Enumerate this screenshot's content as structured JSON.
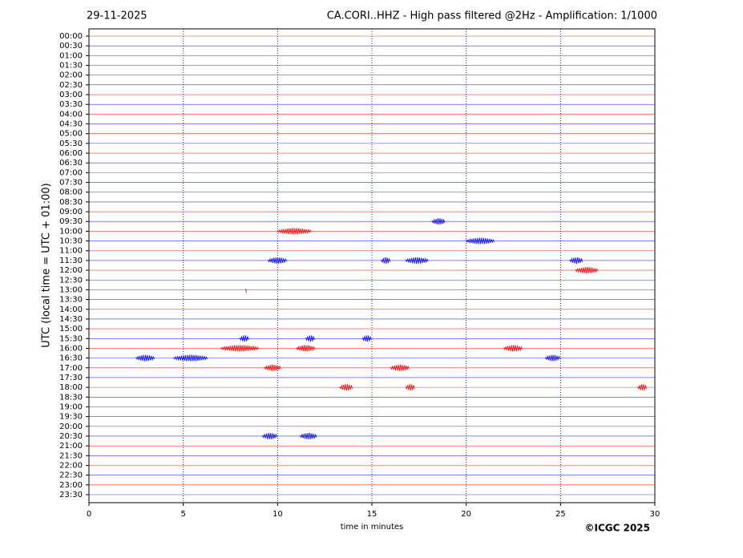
{
  "chart_data": {
    "type": "helicorder",
    "date": "29-11-2025",
    "title": "CA.CORI..HHZ - High pass filtered @2Hz - Amplification: 1/1000",
    "ylabel": "UTC (local time = UTC + 01:00)",
    "xlabel": "time in minutes",
    "copyright": "©ICGC 2025",
    "categories": [
      "00:00",
      "00:30",
      "01:00",
      "01:30",
      "02:00",
      "02:30",
      "03:00",
      "03:30",
      "04:00",
      "04:30",
      "05:00",
      "05:30",
      "06:00",
      "06:30",
      "07:00",
      "07:30",
      "08:00",
      "08:30",
      "09:00",
      "09:30",
      "10:00",
      "10:30",
      "11:00",
      "11:30",
      "12:00",
      "12:30",
      "13:00",
      "13:30",
      "14:00",
      "14:30",
      "15:00",
      "15:30",
      "16:00",
      "16:30",
      "17:00",
      "17:30",
      "18:00",
      "18:30",
      "19:00",
      "19:30",
      "20:00",
      "20:30",
      "21:00",
      "21:30",
      "22:00",
      "22:30",
      "23:00",
      "23:30"
    ],
    "colors": [
      "red",
      "blue"
    ],
    "xlim": [
      0,
      30
    ],
    "xticks": [
      0,
      5,
      10,
      15,
      20,
      25,
      30
    ],
    "grid": true,
    "bursts": [
      {
        "row": 19,
        "start": 18.2,
        "end": 18.9
      },
      {
        "row": 20,
        "start": 10,
        "end": 11.8
      },
      {
        "row": 21,
        "start": 20,
        "end": 21.5
      },
      {
        "row": 23,
        "start": 9.5,
        "end": 10.5
      },
      {
        "row": 23,
        "start": 15.5,
        "end": 16
      },
      {
        "row": 23,
        "start": 16.8,
        "end": 18
      },
      {
        "row": 23,
        "start": 25.5,
        "end": 26.2
      },
      {
        "row": 24,
        "start": 25.8,
        "end": 27
      },
      {
        "row": 26,
        "start": 8.3,
        "end": 8.4
      },
      {
        "row": 31,
        "start": 8,
        "end": 8.5
      },
      {
        "row": 31,
        "start": 11.5,
        "end": 12
      },
      {
        "row": 31,
        "start": 14.5,
        "end": 15
      },
      {
        "row": 32,
        "start": 7,
        "end": 9
      },
      {
        "row": 32,
        "start": 11,
        "end": 12
      },
      {
        "row": 32,
        "start": 22,
        "end": 23
      },
      {
        "row": 33,
        "start": 2.5,
        "end": 3.5
      },
      {
        "row": 33,
        "start": 4.5,
        "end": 6.3
      },
      {
        "row": 33,
        "start": 24.2,
        "end": 25
      },
      {
        "row": 34,
        "start": 9.3,
        "end": 10.2
      },
      {
        "row": 34,
        "start": 16,
        "end": 17
      },
      {
        "row": 36,
        "start": 13.3,
        "end": 14
      },
      {
        "row": 36,
        "start": 16.8,
        "end": 17.3
      },
      {
        "row": 36,
        "start": 29.1,
        "end": 29.6
      },
      {
        "row": 41,
        "start": 9.2,
        "end": 10
      },
      {
        "row": 41,
        "start": 11.2,
        "end": 12.1
      }
    ]
  }
}
